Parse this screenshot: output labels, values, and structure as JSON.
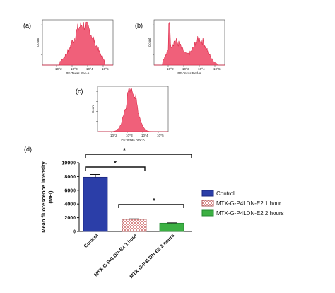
{
  "colors": {
    "histogram_fill": "#f0607a",
    "histogram_edge": "#d81b3c",
    "control": "#2b3ea8",
    "one_hour": "#d98a8a",
    "two_hours": "#3cb043"
  },
  "chart_data": [
    {
      "type": "area",
      "panel": "(a)",
      "ylabel": "Count",
      "xlabel": "PE-Texas Red-A",
      "xscale": "log",
      "x_ticks": [
        "10^2",
        "10^3",
        "10^4",
        "10^5"
      ],
      "peak": "single broad peak spanning ~10^2.3–10^3.8, maximum near 10^3.3"
    },
    {
      "type": "area",
      "panel": "(b)",
      "ylabel": "Count",
      "xlabel": "PE-Texas Red-A",
      "xscale": "log",
      "x_ticks": [
        "10^2",
        "10^3",
        "10^4",
        "10^5"
      ],
      "peak": "broad bimodal distribution, sharp spike near 10^2.2, second hump near 10^3.3"
    },
    {
      "type": "area",
      "panel": "(c)",
      "ylabel": "Count",
      "xlabel": "PE-Texas Red-A",
      "xscale": "log",
      "x_ticks": [
        "10^2",
        "10^3",
        "10^4",
        "10^5"
      ],
      "peak": "single narrow peak near 10^3"
    },
    {
      "type": "bar",
      "panel": "(d)",
      "ylabel": "Mean fluorescence intensity (MFI)",
      "ylabel_line1": "Mean fluorescence intensity",
      "ylabel_line2": "(MFI)",
      "ylim": [
        0,
        10000
      ],
      "y_ticks": [
        "0",
        "2000",
        "4000",
        "6000",
        "8000",
        "10000"
      ],
      "categories": [
        "Control",
        "MTX-G-P4LDN-E2 1 hour",
        "MTX-G-P4LDN-E2 2 hours"
      ],
      "values": [
        7900,
        1750,
        1200
      ],
      "errors": [
        400,
        80,
        50
      ],
      "legend": [
        "Control",
        "MTX-G-P4LDN-E2 1 hour",
        "MTX-G-P4LDN-E2 2 hours"
      ],
      "legend_position": "right",
      "significance": [
        {
          "from": 0,
          "to": 2,
          "label": "*"
        },
        {
          "from": 0,
          "to": 1,
          "label": "*"
        },
        {
          "from": 1,
          "to": 2,
          "label": "*"
        }
      ]
    }
  ]
}
